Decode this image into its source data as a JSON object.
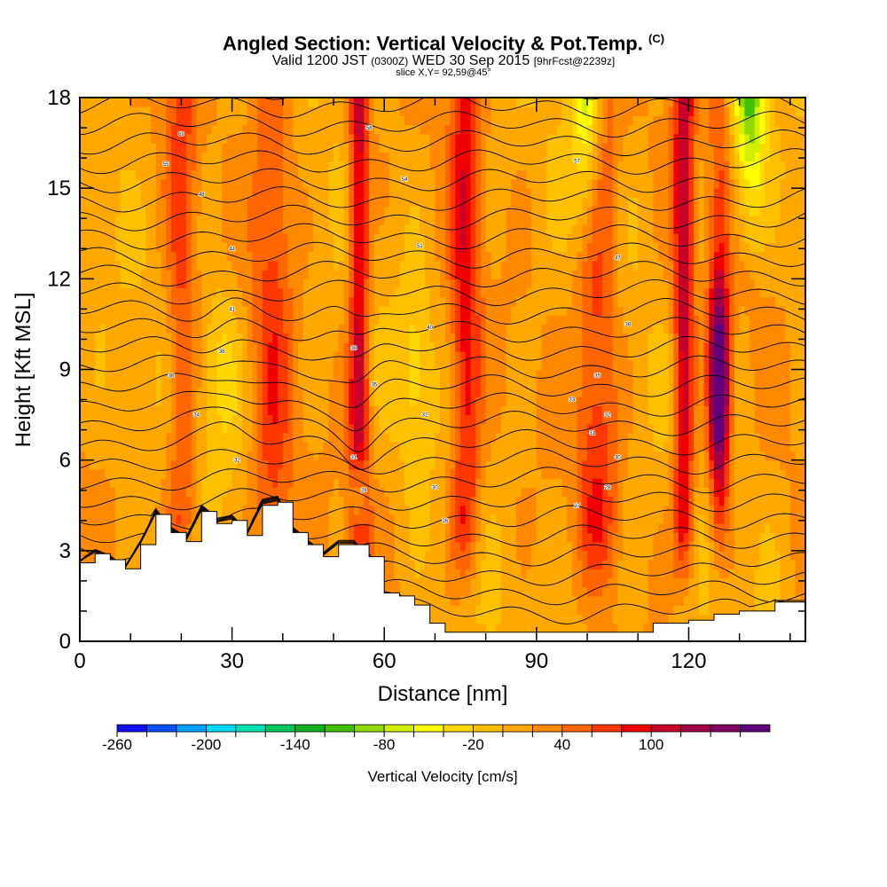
{
  "chart_data": {
    "type": "heatmap",
    "title": "Angled Section: Vertical Velocity & Pot.Temp.",
    "title_unit": "(C)",
    "subtitle_a": "Valid 1200 JST",
    "subtitle_b": "(0300Z)",
    "subtitle_c": "WED 30 Sep 2015",
    "subtitle_d": "[9hrFcst@2239z]",
    "slice_label": "slice X,Y= 92,59@45°",
    "xlabel": "Distance [nm]",
    "ylabel": "Height [Kft MSL]",
    "xlim": [
      0,
      143
    ],
    "ylim": [
      0,
      18
    ],
    "x_ticks": [
      0,
      30,
      60,
      90,
      120
    ],
    "y_ticks": [
      0,
      3,
      6,
      9,
      12,
      15,
      18
    ],
    "colorbar": {
      "label": "Vertical Velocity [cm/s]",
      "tick_labels": [
        -260,
        -200,
        -140,
        -80,
        -20,
        40,
        100
      ],
      "bins": [
        {
          "min": -260,
          "max": -240,
          "color": "#1010f0"
        },
        {
          "min": -240,
          "max": -220,
          "color": "#0a50ff"
        },
        {
          "min": -220,
          "max": -200,
          "color": "#00a0ff"
        },
        {
          "min": -200,
          "max": -180,
          "color": "#00d8f8"
        },
        {
          "min": -180,
          "max": -160,
          "color": "#00e0b0"
        },
        {
          "min": -160,
          "max": -140,
          "color": "#00c860"
        },
        {
          "min": -140,
          "max": -120,
          "color": "#10b020"
        },
        {
          "min": -120,
          "max": -100,
          "color": "#40c000"
        },
        {
          "min": -100,
          "max": -80,
          "color": "#90d800"
        },
        {
          "min": -80,
          "max": -60,
          "color": "#d0f000"
        },
        {
          "min": -60,
          "max": -40,
          "color": "#ffff00"
        },
        {
          "min": -40,
          "max": -20,
          "color": "#ffd800"
        },
        {
          "min": -20,
          "max": 0,
          "color": "#ffc000"
        },
        {
          "min": 0,
          "max": 20,
          "color": "#ffa800"
        },
        {
          "min": 20,
          "max": 40,
          "color": "#ff8a00"
        },
        {
          "min": 40,
          "max": 60,
          "color": "#ff6600"
        },
        {
          "min": 60,
          "max": 80,
          "color": "#ff3800"
        },
        {
          "min": 80,
          "max": 100,
          "color": "#f00000"
        },
        {
          "min": 100,
          "max": 120,
          "color": "#c8002c"
        },
        {
          "min": 120,
          "max": 140,
          "color": "#a00048"
        },
        {
          "min": 140,
          "max": 160,
          "color": "#800060"
        },
        {
          "min": 160,
          "max": 180,
          "color": "#60007a"
        }
      ]
    },
    "terrain_profile": {
      "x": [
        0,
        3,
        6,
        9,
        12,
        15,
        18,
        21,
        24,
        27,
        30,
        33,
        36,
        39,
        42,
        45,
        48,
        51,
        54,
        57,
        60,
        63,
        66,
        69,
        72,
        75,
        80,
        90,
        100,
        110,
        113,
        120,
        125,
        130,
        137,
        140,
        143
      ],
      "y": [
        2.6,
        2.9,
        2.7,
        2.4,
        3.2,
        4.2,
        3.6,
        3.3,
        4.3,
        3.9,
        4.0,
        3.5,
        4.5,
        4.6,
        3.6,
        3.2,
        2.8,
        3.2,
        3.2,
        2.8,
        1.6,
        1.5,
        1.2,
        0.6,
        0.3,
        0.3,
        0.3,
        0.3,
        0.3,
        0.3,
        0.6,
        0.7,
        0.9,
        1.0,
        1.3,
        1.3,
        1.3
      ]
    },
    "updraft_features": [
      {
        "x": 20,
        "w": 3,
        "intensity": 50
      },
      {
        "x": 38,
        "w": 4,
        "intensity": 50
      },
      {
        "x": 55,
        "w": 2,
        "intensity": 100
      },
      {
        "x": 76,
        "w": 3,
        "intensity": 75
      },
      {
        "x": 102,
        "w": 4,
        "intensity": 60
      },
      {
        "x": 119,
        "w": 2,
        "intensity": 100
      },
      {
        "x": 126,
        "w": 2,
        "intensity": 170
      }
    ],
    "downdraft_features": [
      {
        "x": 28,
        "w": 4,
        "intensity": -40
      },
      {
        "x": 55,
        "w": 1.5,
        "intensity": -90
      },
      {
        "x": 66,
        "w": 3,
        "intensity": -40
      },
      {
        "x": 100,
        "w": 3,
        "intensity": -120
      },
      {
        "x": 132,
        "w": 3,
        "intensity": -120
      }
    ],
    "contour_labels": [
      {
        "x": 20,
        "y": 16.8,
        "text": "69"
      },
      {
        "x": 17,
        "y": 15.8,
        "text": "55"
      },
      {
        "x": 24,
        "y": 14.8,
        "text": "48"
      },
      {
        "x": 30,
        "y": 13.0,
        "text": "44"
      },
      {
        "x": 30,
        "y": 11.0,
        "text": "41"
      },
      {
        "x": 28,
        "y": 9.6,
        "text": "38"
      },
      {
        "x": 18,
        "y": 8.8,
        "text": "36"
      },
      {
        "x": 23,
        "y": 7.5,
        "text": "34"
      },
      {
        "x": 31,
        "y": 6.0,
        "text": "32"
      },
      {
        "x": 57,
        "y": 17.0,
        "text": "58"
      },
      {
        "x": 64,
        "y": 15.3,
        "text": "54"
      },
      {
        "x": 67,
        "y": 13.1,
        "text": "51"
      },
      {
        "x": 69,
        "y": 10.4,
        "text": "40"
      },
      {
        "x": 54,
        "y": 9.7,
        "text": "38"
      },
      {
        "x": 58,
        "y": 8.5,
        "text": "35"
      },
      {
        "x": 68,
        "y": 7.5,
        "text": "32"
      },
      {
        "x": 54,
        "y": 6.1,
        "text": "31"
      },
      {
        "x": 56,
        "y": 5.0,
        "text": "28"
      },
      {
        "x": 70,
        "y": 5.1,
        "text": "30"
      },
      {
        "x": 72,
        "y": 4.0,
        "text": "26"
      },
      {
        "x": 98,
        "y": 15.9,
        "text": "57"
      },
      {
        "x": 106,
        "y": 12.7,
        "text": "47"
      },
      {
        "x": 108,
        "y": 10.5,
        "text": "38"
      },
      {
        "x": 102,
        "y": 8.8,
        "text": "35"
      },
      {
        "x": 97,
        "y": 8.0,
        "text": "33"
      },
      {
        "x": 104,
        "y": 7.5,
        "text": "32"
      },
      {
        "x": 101,
        "y": 6.9,
        "text": "31"
      },
      {
        "x": 106,
        "y": 6.1,
        "text": "30"
      },
      {
        "x": 104,
        "y": 5.1,
        "text": "28"
      },
      {
        "x": 98,
        "y": 4.5,
        "text": "27"
      }
    ]
  }
}
